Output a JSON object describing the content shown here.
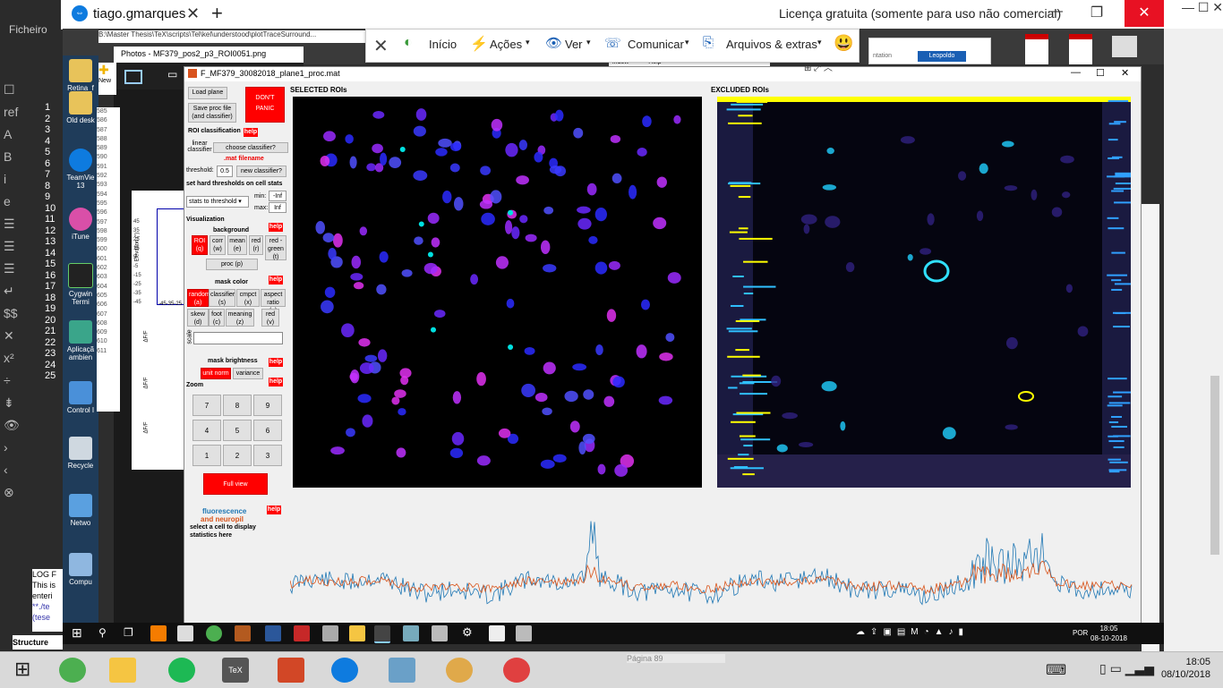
{
  "outer": {
    "ficheiro": "Ficheiro",
    "clock_time": "18:05",
    "clock_date": "08/10/2018",
    "left_bottom_texts": [
      "LOG F",
      "This is",
      "enteri",
      "**./te",
      "(tese",
      "Structure"
    ],
    "bottom_status": "Página 89"
  },
  "teamviewer": {
    "tab_title": "tiago.gmarques",
    "licence": "Licença gratuita (somente para uso não comercial)",
    "toolbar": {
      "home": "Início",
      "actions": "Ações",
      "view": "Ver",
      "communicate": "Comunicar",
      "files": "Arquivos & extras"
    }
  },
  "remote": {
    "desktop_icons": [
      {
        "label": "Retina_f",
        "icon": "folder-icon"
      },
      {
        "label": "Old desk",
        "icon": "folder-icon"
      },
      {
        "label": "TeamVie 13",
        "icon": "teamviewer-icon"
      },
      {
        "label": "iTune",
        "icon": "itunes-icon"
      },
      {
        "label": "Cygwin Termi",
        "icon": "terminal-icon"
      },
      {
        "label": "Aplicaçã ambien",
        "icon": "app-icon"
      },
      {
        "label": "Control I",
        "icon": "control-panel-icon"
      },
      {
        "label": "Recycle",
        "icon": "recycle-bin-icon"
      },
      {
        "label": "Netwo",
        "icon": "network-icon"
      },
      {
        "label": "Compu",
        "icon": "computer-icon"
      }
    ],
    "clock_time": "18:05",
    "clock_date": "08-10-2018",
    "lang": "POR",
    "explorer_path": "B:\\Master Thesis\\TeX\\scripts\\Tel\\kel\\understood\\plotTraceSurround..."
  },
  "photos": {
    "title": "Photos - MF379_pos2_p3_ROI0051.png",
    "new_label": "New",
    "figure_axis_label": "Elevation (°)",
    "y_ticks": [
      "45",
      "35",
      "25",
      "15",
      "5",
      "-5",
      "-15",
      "-25",
      "-35",
      "-45"
    ],
    "x_ticks": "-45-35-25",
    "dff": "ΔF/F",
    "code_lines": [
      "585",
      "586",
      "587",
      "588",
      "589",
      "590",
      "591",
      "592",
      "593",
      "594",
      "595",
      "596",
      "597",
      "598",
      "599",
      "600",
      "601",
      "602",
      "603",
      "604",
      "605",
      "606",
      "607",
      "608",
      "609",
      "610",
      "611"
    ]
  },
  "matlab": {
    "title": "F_MF379_30082018_plane1_proc.mat",
    "load_plane": "Load plane",
    "save_proc": "Save proc file (and classifier)",
    "dont_panic": "DON'T PANIC",
    "roi_classification": "ROI classification",
    "help": "help",
    "linear_classifier": "linear classifier",
    "choose_classifier": "choose classifier?",
    "mat_filename": ".mat filename",
    "threshold_label": "threshold:",
    "threshold_value": "0.5",
    "new_classifier": "new classifier?",
    "hard_thresholds": "set hard thresholds on cell stats",
    "stats_to_threshold": "stats to threshold",
    "min_label": "min:",
    "min_value": "-Inf",
    "max_label": "max:",
    "max_value": "Inf",
    "visualization": "Visualization",
    "background": "background",
    "bg_buttons": [
      "ROI (q)",
      "corr (w)",
      "mean (e)",
      "red (r)",
      "red - green (t)"
    ],
    "proc": "proc (p)",
    "mask_color": "mask color",
    "mask_buttons": [
      "random (a)",
      "classifier (s)",
      "cmpct (x)",
      "aspect ratio (g)"
    ],
    "mask_buttons2": [
      "skew (d)",
      "foot (c)",
      "meaning (z)",
      "red (v)"
    ],
    "scale": "scale",
    "mask_brightness": "mask brightness",
    "unit_norm": "unit norm",
    "variance": "variance",
    "zoom": "Zoom",
    "zoom_keys": [
      "7",
      "8",
      "9",
      "4",
      "5",
      "6",
      "1",
      "2",
      "3"
    ],
    "full_view": "Full view",
    "fluorescence": "fluorescence",
    "and_neuropil": "and neuropil",
    "select_cell": "select a cell to display statistics here",
    "selected_rois": "SELECTED ROIs",
    "excluded_rois": "EXCLUDED ROIs",
    "colors": {
      "fluorescence": "#1f77b4",
      "neuropil": "#d95319",
      "accent": "#ff0000"
    }
  },
  "browser_fragment": {
    "tab_text": "Leopoldo",
    "search_hint": "ntation",
    "menu_window": "indow",
    "menu_help": "Help"
  }
}
